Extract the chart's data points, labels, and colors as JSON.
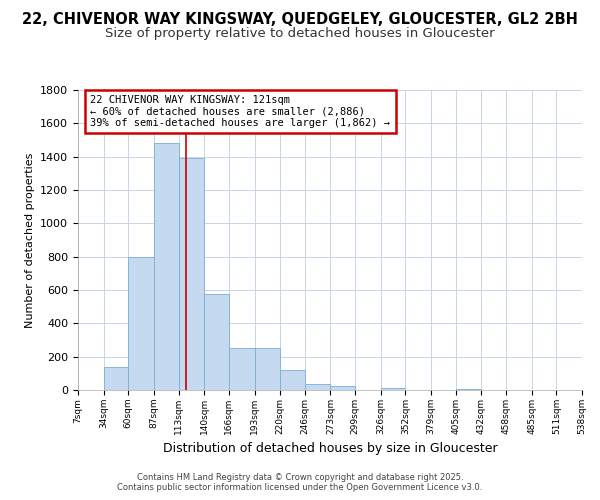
{
  "title1": "22, CHIVENOR WAY KINGSWAY, QUEDGELEY, GLOUCESTER, GL2 2BH",
  "title2": "Size of property relative to detached houses in Gloucester",
  "xlabel": "Distribution of detached houses by size in Gloucester",
  "ylabel": "Number of detached properties",
  "bins": [
    7,
    34,
    60,
    87,
    113,
    140,
    166,
    193,
    220,
    246,
    273,
    299,
    326,
    352,
    379,
    405,
    432,
    458,
    485,
    511,
    538
  ],
  "bar_heights": [
    0,
    140,
    800,
    1480,
    1390,
    575,
    250,
    250,
    120,
    35,
    25,
    0,
    15,
    0,
    0,
    5,
    0,
    0,
    0,
    0
  ],
  "bar_color": "#c5d9f1",
  "bar_edge_color": "#7bafd4",
  "ylim": [
    0,
    1800
  ],
  "yticks": [
    0,
    200,
    400,
    600,
    800,
    1000,
    1200,
    1400,
    1600,
    1800
  ],
  "property_size": 121,
  "red_line_color": "#cc0000",
  "annotation_title": "22 CHIVENOR WAY KINGSWAY: 121sqm",
  "annotation_line1": "← 60% of detached houses are smaller (2,886)",
  "annotation_line2": "39% of semi-detached houses are larger (1,862) →",
  "annotation_box_color": "#ffffff",
  "annotation_border_color": "#cc0000",
  "footer1": "Contains HM Land Registry data © Crown copyright and database right 2025.",
  "footer2": "Contains public sector information licensed under the Open Government Licence v3.0.",
  "bg_color": "#ffffff",
  "plot_bg_color": "#ffffff",
  "grid_color": "#c8d4e8",
  "title_fontsize": 10.5,
  "subtitle_fontsize": 9.5
}
